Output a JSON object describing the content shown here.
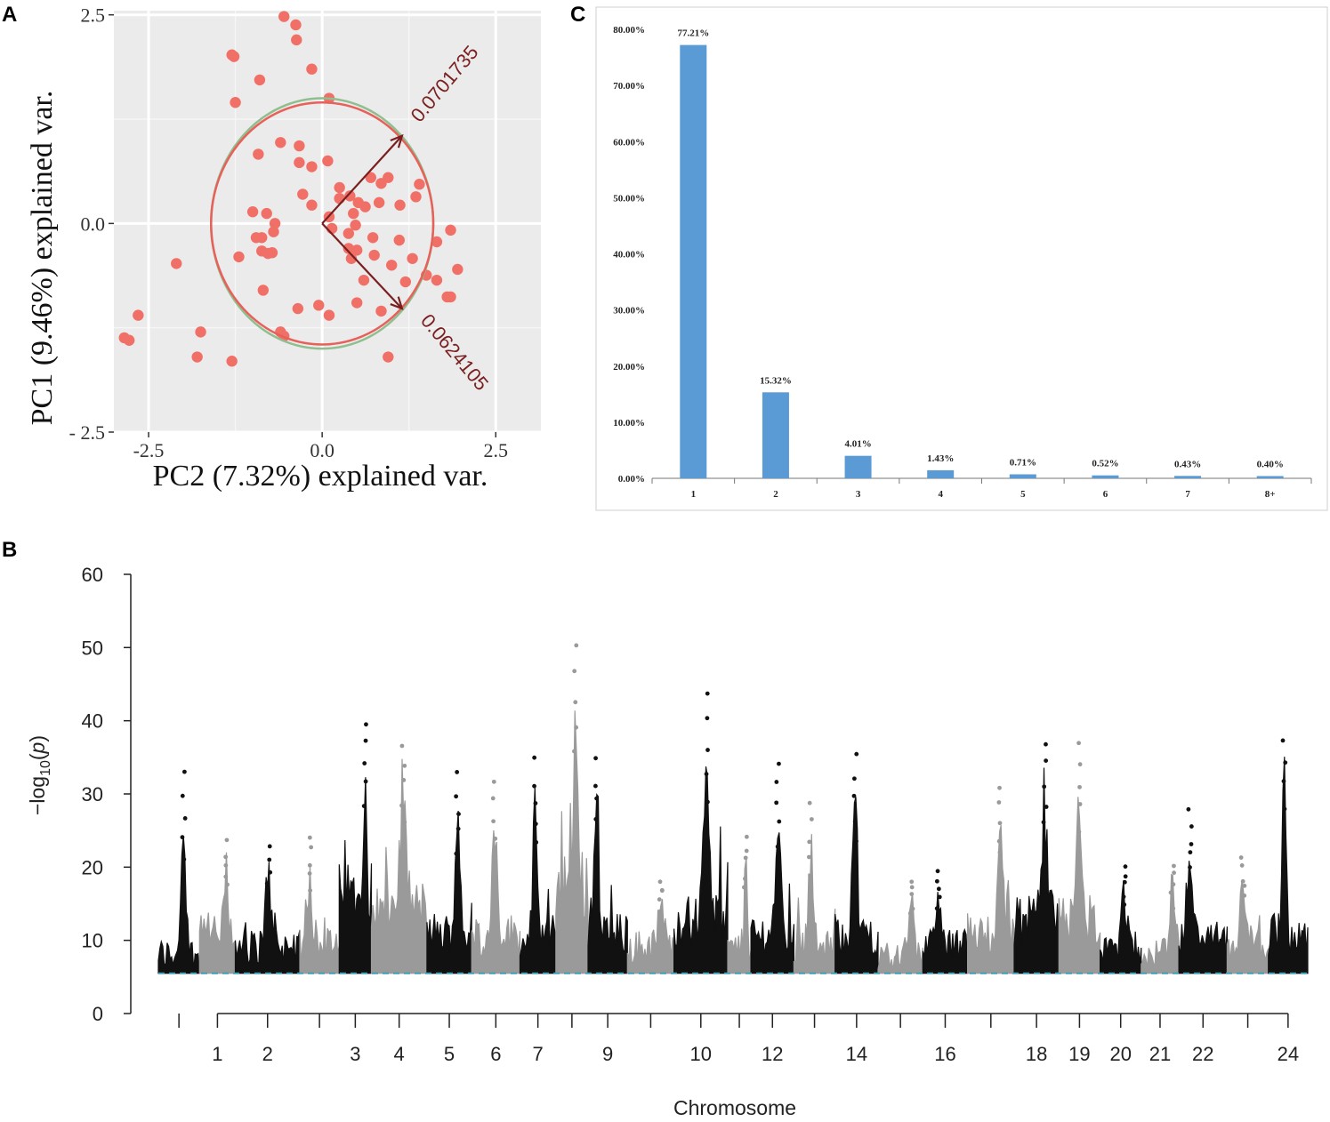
{
  "panels": {
    "a": "A",
    "b": "B",
    "c": "C"
  },
  "chart_data": [
    {
      "id": "A",
      "type": "scatter",
      "xlabel": "PC2 (7.32%) explained var.",
      "ylabel": "PC1 (9.46%) explained var.",
      "xlim": [
        -3.0,
        3.15
      ],
      "ylim": [
        -2.5,
        2.55
      ],
      "xticks": [
        -2.5,
        0.0,
        2.5
      ],
      "xtick_labels": [
        "-2.5",
        "0.0",
        "2.5"
      ],
      "yticks": [
        2.5,
        0.0,
        -2.5
      ],
      "ytick_labels": [
        "2.5",
        "0.0",
        "- 2.5"
      ],
      "point_color": "#f07068",
      "ellipse_red": "#e8605a",
      "ellipse_green": "#8fbf8f",
      "arrow_color": "#7a1f1f",
      "ellipse_red_params": {
        "cx": 0.0,
        "cy": 0.0,
        "rx": 1.6,
        "ry": 1.45
      },
      "ellipse_green_params": {
        "cx": 0.0,
        "cy": 0.0,
        "rx": 1.6,
        "ry": 1.5
      },
      "arrows": [
        {
          "label": "0.0701735",
          "x": 1.15,
          "y": 1.05,
          "angle": -50
        },
        {
          "label": "0.0624105",
          "x": 1.15,
          "y": -1.02,
          "angle": 50
        }
      ],
      "points": [
        [
          -0.55,
          2.48
        ],
        [
          -0.38,
          2.38
        ],
        [
          -0.37,
          2.2
        ],
        [
          -1.3,
          2.02
        ],
        [
          -1.27,
          2.0
        ],
        [
          -0.15,
          1.85
        ],
        [
          -0.9,
          1.72
        ],
        [
          0.1,
          1.5
        ],
        [
          -1.25,
          1.45
        ],
        [
          -0.6,
          0.97
        ],
        [
          -0.33,
          0.93
        ],
        [
          -0.92,
          0.83
        ],
        [
          -0.33,
          0.73
        ],
        [
          -0.15,
          0.68
        ],
        [
          0.08,
          0.75
        ],
        [
          0.7,
          0.55
        ],
        [
          0.95,
          0.55
        ],
        [
          0.85,
          0.48
        ],
        [
          1.4,
          0.47
        ],
        [
          0.25,
          0.43
        ],
        [
          0.4,
          0.33
        ],
        [
          0.25,
          0.3
        ],
        [
          -0.28,
          0.35
        ],
        [
          -0.15,
          0.22
        ],
        [
          0.52,
          0.25
        ],
        [
          0.62,
          0.2
        ],
        [
          0.82,
          0.25
        ],
        [
          1.12,
          0.22
        ],
        [
          1.35,
          0.32
        ],
        [
          0.45,
          0.12
        ],
        [
          0.1,
          0.08
        ],
        [
          -1.0,
          0.14
        ],
        [
          -0.8,
          0.12
        ],
        [
          -0.68,
          0.0
        ],
        [
          -0.7,
          -0.1
        ],
        [
          -0.95,
          -0.17
        ],
        [
          -0.87,
          -0.17
        ],
        [
          0.38,
          -0.12
        ],
        [
          0.73,
          -0.17
        ],
        [
          1.11,
          -0.2
        ],
        [
          0.38,
          -0.3
        ],
        [
          -0.87,
          -0.33
        ],
        [
          -0.72,
          -0.35
        ],
        [
          -0.78,
          -0.36
        ],
        [
          0.5,
          -0.32
        ],
        [
          0.75,
          -0.38
        ],
        [
          1.3,
          -0.42
        ],
        [
          0.42,
          -0.42
        ],
        [
          1.0,
          -0.5
        ],
        [
          1.5,
          -0.62
        ],
        [
          1.65,
          -0.68
        ],
        [
          0.6,
          -0.68
        ],
        [
          -0.85,
          -0.8
        ],
        [
          1.85,
          -0.88
        ],
        [
          0.5,
          -0.95
        ],
        [
          -0.35,
          -1.02
        ],
        [
          -0.05,
          -0.98
        ],
        [
          0.1,
          -1.1
        ],
        [
          0.85,
          -1.05
        ],
        [
          -1.2,
          -0.4
        ],
        [
          1.95,
          -0.55
        ],
        [
          1.85,
          -0.08
        ],
        [
          1.65,
          -0.22
        ],
        [
          1.8,
          -0.88
        ],
        [
          -2.1,
          -0.48
        ],
        [
          -2.65,
          -1.1
        ],
        [
          -2.85,
          -1.37
        ],
        [
          -2.78,
          -1.4
        ],
        [
          -1.75,
          -1.3
        ],
        [
          -0.6,
          -1.3
        ],
        [
          -0.55,
          -1.35
        ],
        [
          -1.8,
          -1.6
        ],
        [
          -1.3,
          -1.65
        ],
        [
          0.95,
          -1.6
        ],
        [
          1.2,
          -0.7
        ],
        [
          0.48,
          -0.02
        ],
        [
          0.14,
          -0.06
        ]
      ]
    },
    {
      "id": "C",
      "type": "bar",
      "categories": [
        "1",
        "2",
        "3",
        "4",
        "5",
        "6",
        "7",
        "8+"
      ],
      "values": [
        77.21,
        15.32,
        4.01,
        1.43,
        0.71,
        0.52,
        0.43,
        0.4
      ],
      "value_labels": [
        "77.21%",
        "15.32%",
        "4.01%",
        "1.43%",
        "0.71%",
        "0.52%",
        "0.43%",
        "0.40%"
      ],
      "ylim": [
        0,
        80
      ],
      "yticks": [
        0,
        10,
        20,
        30,
        40,
        50,
        60,
        70,
        80
      ],
      "ytick_labels": [
        "0.00%",
        "10.00%",
        "20.00%",
        "30.00%",
        "40.00%",
        "50.00%",
        "60.00%",
        "70.00%",
        "80.00%"
      ],
      "bar_color": "#5b9bd5",
      "xlabel": "",
      "ylabel": "",
      "title": ""
    },
    {
      "id": "B",
      "type": "scatter",
      "subtype": "manhattan",
      "xlabel": "Chromosome",
      "ylabel": "−log10(p)",
      "ylabel_parts": {
        "prefix": "−log",
        "sub": "10",
        "paren_open": "(",
        "var": "p",
        "paren_close": ")"
      },
      "ylim": [
        0,
        60
      ],
      "yticks": [
        0,
        10,
        20,
        30,
        40,
        50,
        60
      ],
      "ytick_labels": [
        "0",
        "10",
        "20",
        "30",
        "40",
        "50",
        "60"
      ],
      "threshold": 5.5,
      "threshold_color": "#3aa0b5",
      "colors": [
        "#111111",
        "#9a9a9a"
      ],
      "chromosome_labels": [
        "1",
        "2",
        "3",
        "4",
        "5",
        "6",
        "7",
        "9",
        "10",
        "12",
        "14",
        "16",
        "18",
        "19",
        "20",
        "21",
        "22",
        "24"
      ],
      "chromosomes": [
        {
          "label": "",
          "width": 1.15,
          "peak": 33.5,
          "base": 9
        },
        {
          "label": "1",
          "width": 1.0,
          "peak": 24,
          "base": 12
        },
        {
          "label": "2",
          "width": 1.8,
          "peak": 23,
          "base": 10
        },
        {
          "label": "",
          "width": 1.1,
          "peak": 25,
          "base": 10
        },
        {
          "label": "3",
          "width": 0.9,
          "peak": 40,
          "base": 18
        },
        {
          "label": "4",
          "width": 1.55,
          "peak": 37,
          "base": 16
        },
        {
          "label": "5",
          "width": 1.25,
          "peak": 33,
          "base": 12
        },
        {
          "label": "6",
          "width": 1.35,
          "peak": 32,
          "base": 12
        },
        {
          "label": "7",
          "width": 1.0,
          "peak": 35,
          "base": 12
        },
        {
          "label": "",
          "width": 0.9,
          "peak": 51,
          "base": 20
        },
        {
          "label": "9",
          "width": 1.1,
          "peak": 35,
          "base": 12
        },
        {
          "label": "",
          "width": 1.3,
          "peak": 19,
          "base": 10
        },
        {
          "label": "10",
          "width": 1.5,
          "peak": 44,
          "base": 14
        },
        {
          "label": "",
          "width": 0.65,
          "peak": 25,
          "base": 10
        },
        {
          "label": "12",
          "width": 1.2,
          "peak": 34.5,
          "base": 12
        },
        {
          "label": "",
          "width": 1.15,
          "peak": 29,
          "base": 10
        },
        {
          "label": "14",
          "width": 1.2,
          "peak": 35.5,
          "base": 12
        },
        {
          "label": "",
          "width": 1.25,
          "peak": 19,
          "base": 9
        },
        {
          "label": "16",
          "width": 1.25,
          "peak": 20,
          "base": 10
        },
        {
          "label": "",
          "width": 1.3,
          "peak": 31.5,
          "base": 12
        },
        {
          "label": "18",
          "width": 1.25,
          "peak": 37.5,
          "base": 14
        },
        {
          "label": "19",
          "width": 1.15,
          "peak": 37,
          "base": 14
        },
        {
          "label": "20",
          "width": 1.15,
          "peak": 21,
          "base": 10
        },
        {
          "label": "21",
          "width": 1.05,
          "peak": 21,
          "base": 9
        },
        {
          "label": "22",
          "width": 1.35,
          "peak": 28.5,
          "base": 11
        },
        {
          "label": "",
          "width": 1.15,
          "peak": 22,
          "base": 10
        },
        {
          "label": "24",
          "width": 1.1,
          "peak": 38.5,
          "base": 12
        }
      ]
    }
  ]
}
